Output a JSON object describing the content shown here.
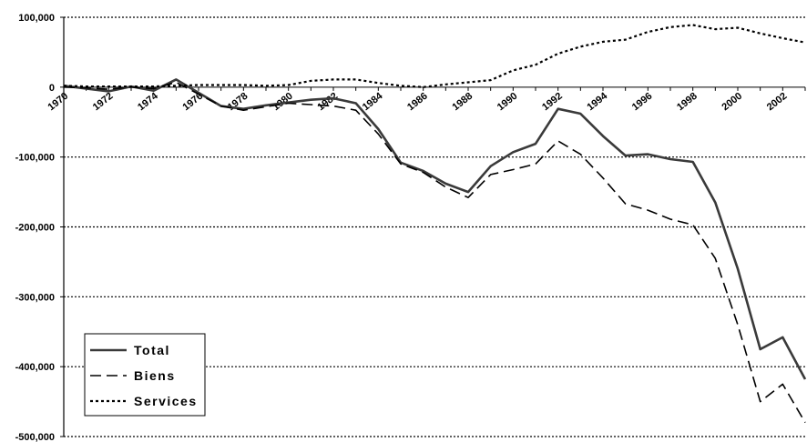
{
  "chart_data": {
    "type": "line",
    "title": "",
    "xlabel": "",
    "ylabel": "",
    "x": [
      1970,
      1971,
      1972,
      1973,
      1974,
      1975,
      1976,
      1977,
      1978,
      1979,
      1980,
      1981,
      1982,
      1983,
      1984,
      1985,
      1986,
      1987,
      1988,
      1989,
      1990,
      1991,
      1992,
      1993,
      1994,
      1995,
      1996,
      1997,
      1998,
      1999,
      2000,
      2001,
      2002,
      2003
    ],
    "x_tick_labels": [
      "1970",
      "1972",
      "1974",
      "1976",
      "1978",
      "1980",
      "1982",
      "1984",
      "1986",
      "1988",
      "1990",
      "1992",
      "1994",
      "1996",
      "1998",
      "2000",
      "2002"
    ],
    "x_tick_years": [
      1970,
      1972,
      1974,
      1976,
      1978,
      1980,
      1982,
      1984,
      1986,
      1988,
      1990,
      1992,
      1994,
      1996,
      1998,
      2000,
      2002
    ],
    "ylim": [
      -500000,
      100000
    ],
    "y_ticks": [
      100000,
      0,
      -100000,
      -200000,
      -300000,
      -400000,
      -500000
    ],
    "y_tick_labels": [
      "100,000",
      "0",
      "-100,000",
      "-200,000",
      "-300,000",
      "-400,000",
      "-500,000"
    ],
    "grid": "horizontal dotted",
    "legend_position": "bottom-left",
    "series": [
      {
        "name": "Total",
        "style": "solid",
        "color": "#3a3a3a",
        "values": [
          2000,
          -2000,
          -6000,
          1000,
          -5000,
          11000,
          -8000,
          -27000,
          -31000,
          -26000,
          -22000,
          -18000,
          -16000,
          -23000,
          -60000,
          -108000,
          -120000,
          -138000,
          -150000,
          -113000,
          -93000,
          -81000,
          -31000,
          -38000,
          -70000,
          -98000,
          -96000,
          -103000,
          -107000,
          -165000,
          -260000,
          -375000,
          -358000,
          -418000
        ]
      },
      {
        "name": "Biens",
        "style": "dashed",
        "color": "#000000",
        "values": [
          0,
          -1000,
          -3000,
          0,
          -2000,
          7000,
          -10000,
          -27000,
          -33000,
          -28000,
          -23000,
          -25000,
          -27000,
          -33000,
          -67000,
          -110000,
          -122000,
          -143000,
          -158000,
          -125000,
          -118000,
          -110000,
          -77000,
          -96000,
          -130000,
          -167000,
          -176000,
          -189000,
          -197000,
          -245000,
          -340000,
          -450000,
          -425000,
          -480000
        ]
      },
      {
        "name": "Services",
        "style": "dotted",
        "color": "#000000",
        "values": [
          2000,
          1000,
          1000,
          1000,
          1000,
          2000,
          3000,
          3000,
          3000,
          2000,
          3000,
          9000,
          11000,
          11000,
          6000,
          2000,
          0,
          4000,
          7000,
          10000,
          24000,
          32000,
          48000,
          58000,
          65000,
          68000,
          79000,
          86000,
          89000,
          83000,
          85000,
          77000,
          70000,
          64000
        ]
      }
    ]
  }
}
